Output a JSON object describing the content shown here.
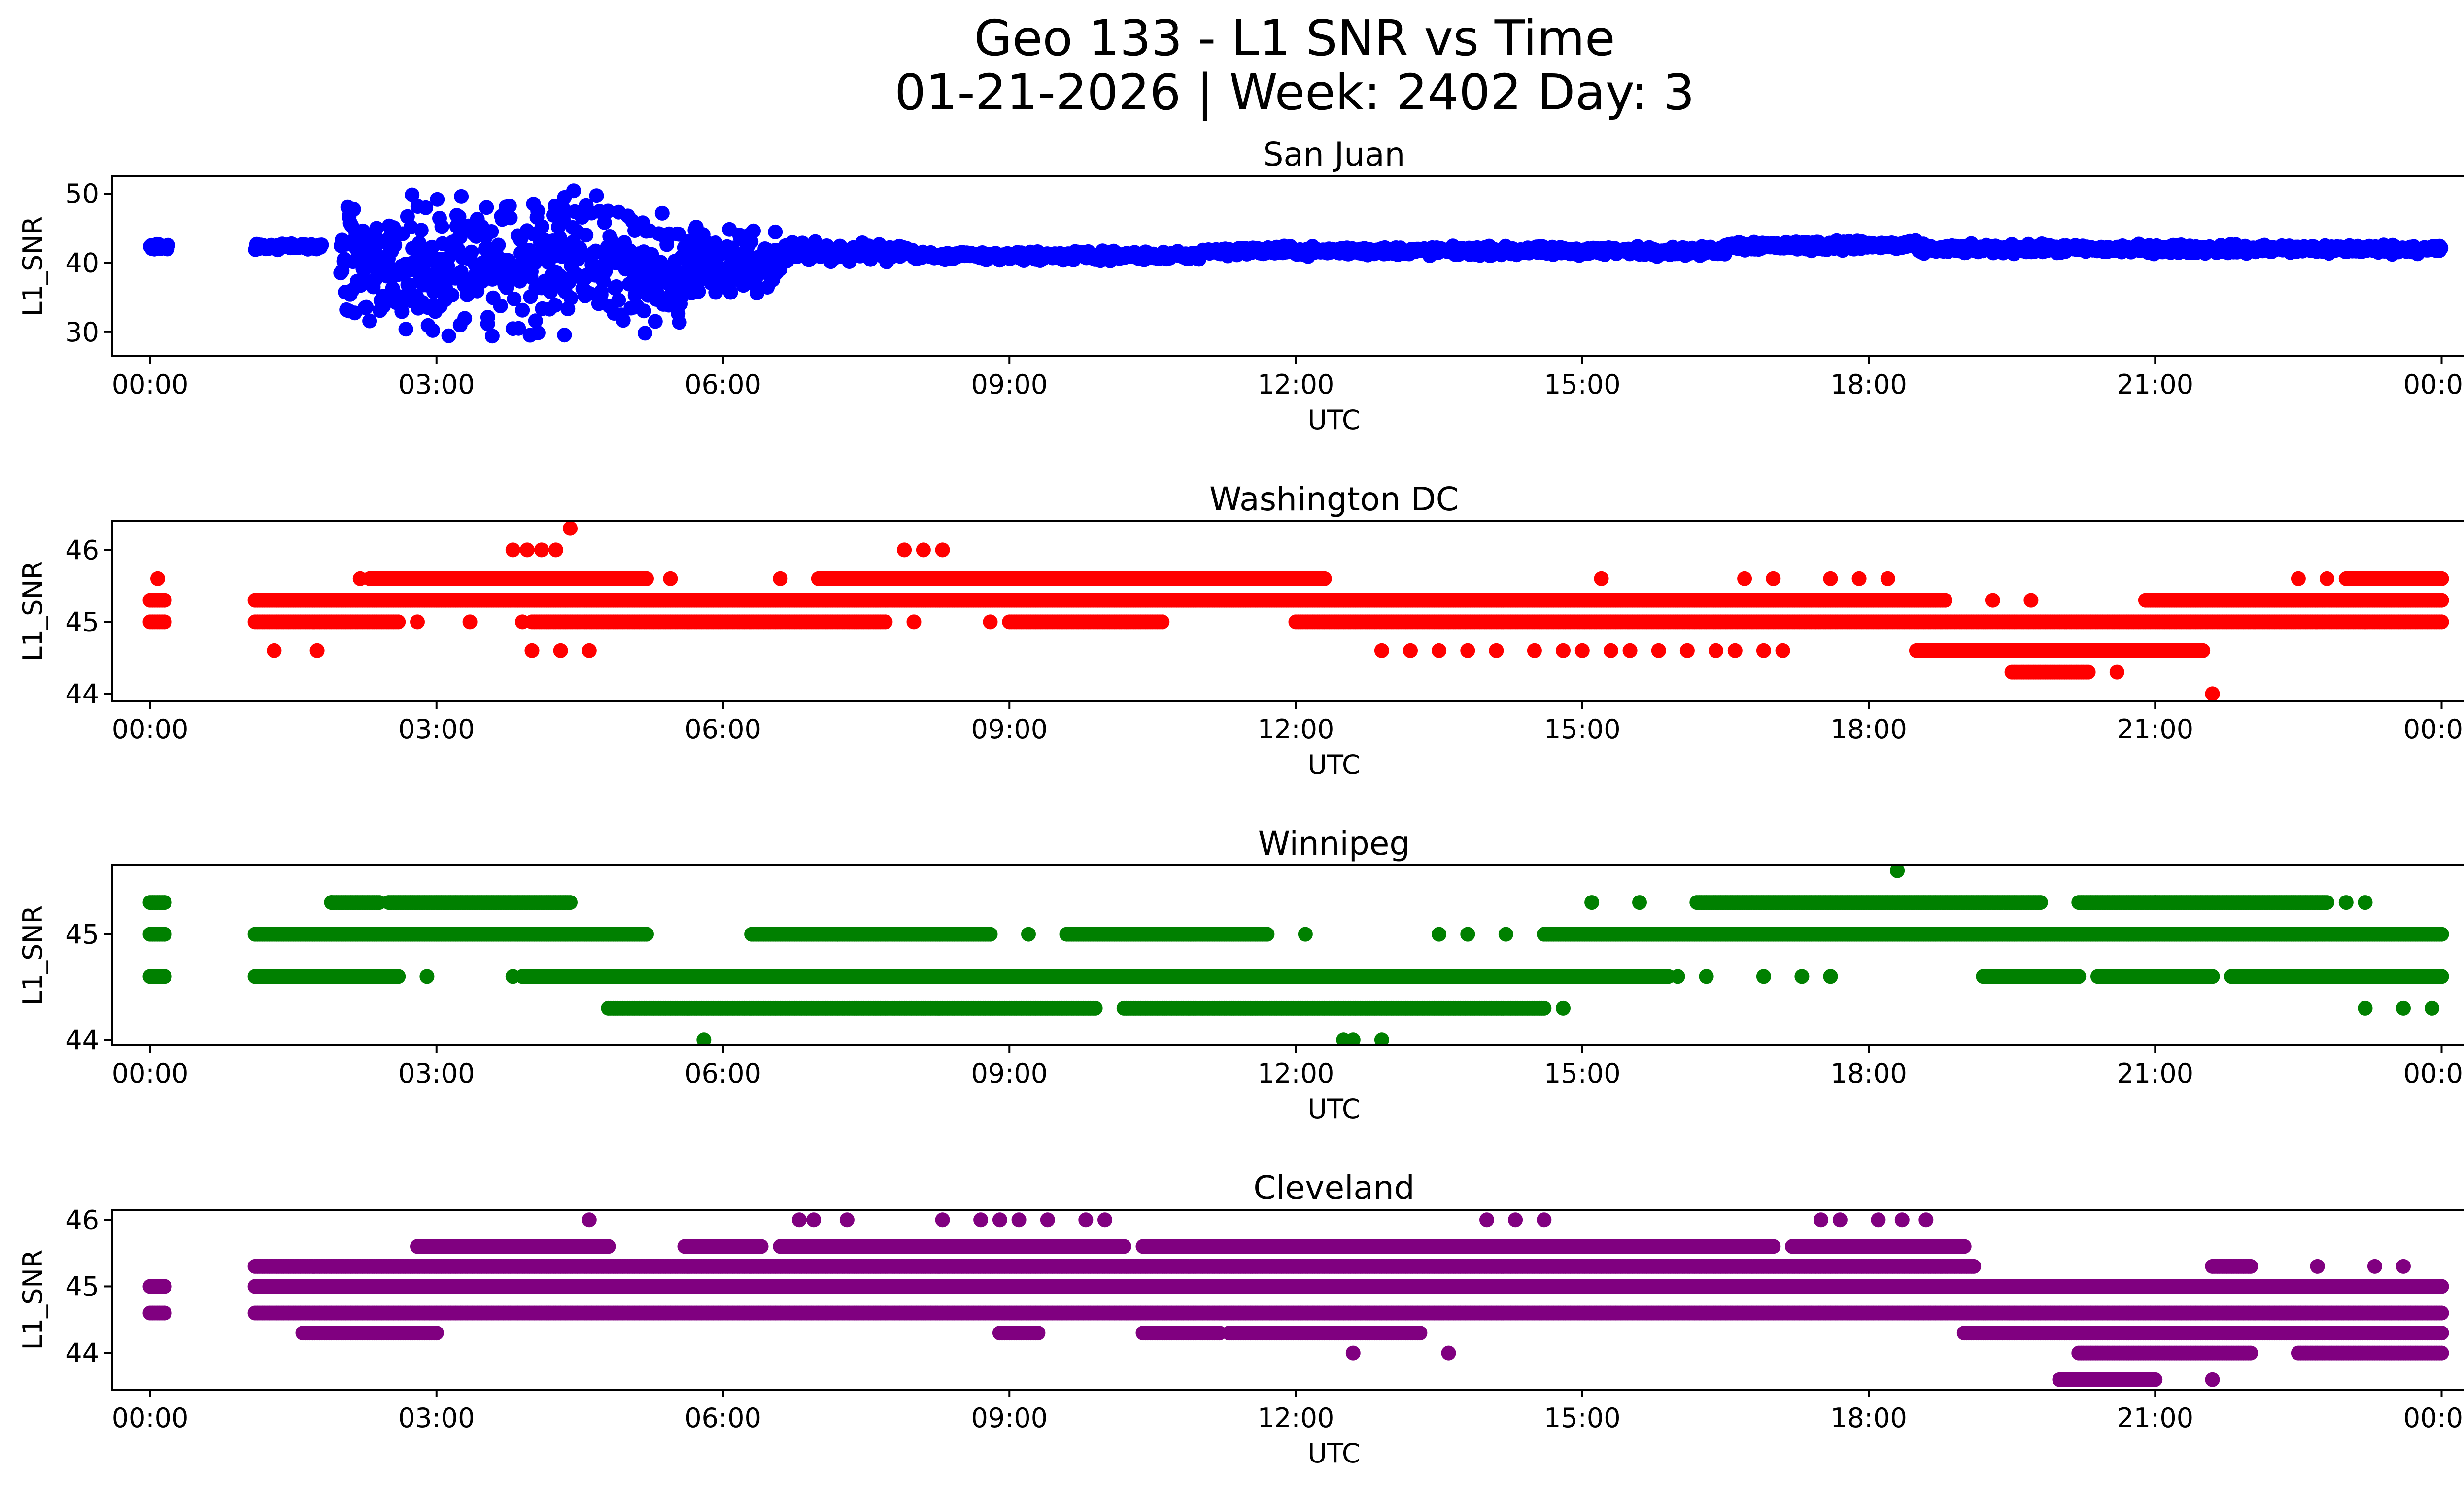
{
  "figure": {
    "title_line1": "Geo 133 - L1 SNR vs Time",
    "title_line2": "01-21-2026 | Week: 2402 Day: 3"
  },
  "chart_data": [
    {
      "type": "scatter",
      "title": "San Juan",
      "xlabel": "UTC",
      "ylabel": "L1_SNR",
      "color": "#0000ff",
      "xlim": [
        -0.4,
        25.2
      ],
      "ylim": [
        26.5,
        52.5
      ],
      "xticks": [
        0,
        3,
        6,
        9,
        12,
        15,
        18,
        21,
        24
      ],
      "xticklabels": [
        "00:00",
        "03:00",
        "06:00",
        "09:00",
        "12:00",
        "15:00",
        "18:00",
        "21:00",
        "00:00"
      ],
      "yticks": [
        30,
        40,
        50
      ],
      "yticklabels": [
        "30",
        "40",
        "50"
      ],
      "profile": [
        {
          "x_start": 0.0,
          "x_end": 0.2,
          "center": 42.3,
          "spread": 0.6
        },
        {
          "x_start": 1.1,
          "x_end": 1.8,
          "center": 42.3,
          "spread": 0.6
        },
        {
          "x_start": 2.0,
          "x_end": 2.6,
          "center": 40.0,
          "spread": 9.0
        },
        {
          "x_start": 2.6,
          "x_end": 4.8,
          "center": 39.5,
          "spread": 11.0
        },
        {
          "x_start": 4.8,
          "x_end": 5.6,
          "center": 38.5,
          "spread": 9.0
        },
        {
          "x_start": 5.6,
          "x_end": 6.6,
          "center": 40.5,
          "spread": 5.0
        },
        {
          "x_start": 6.6,
          "x_end": 8.0,
          "center": 41.5,
          "spread": 2.0
        },
        {
          "x_start": 8.0,
          "x_end": 11.0,
          "center": 41.0,
          "spread": 0.9
        },
        {
          "x_start": 11.0,
          "x_end": 16.5,
          "center": 41.7,
          "spread": 0.9
        },
        {
          "x_start": 16.5,
          "x_end": 18.5,
          "center": 42.5,
          "spread": 1.0
        },
        {
          "x_start": 18.5,
          "x_end": 24.0,
          "center": 42.0,
          "spread": 0.9
        }
      ]
    },
    {
      "type": "scatter",
      "title": "Washington DC",
      "xlabel": "UTC",
      "ylabel": "L1_SNR",
      "color": "#ff0000",
      "xlim": [
        -0.4,
        25.2
      ],
      "ylim": [
        43.9,
        46.4
      ],
      "xticks": [
        0,
        3,
        6,
        9,
        12,
        15,
        18,
        21,
        24
      ],
      "xticklabels": [
        "00:00",
        "03:00",
        "06:00",
        "09:00",
        "12:00",
        "15:00",
        "18:00",
        "21:00",
        "00:00"
      ],
      "yticks": [
        44,
        45,
        46
      ],
      "yticklabels": [
        "44",
        "45",
        "46"
      ],
      "bands": [
        {
          "y": 45.3,
          "segments": [
            [
              0.0,
              0.15
            ],
            [
              1.1,
              18.8
            ],
            [
              20.9,
              24.0
            ]
          ]
        },
        {
          "y": 45.0,
          "segments": [
            [
              0.0,
              0.15
            ],
            [
              1.1,
              2.6
            ],
            [
              4.0,
              7.7
            ],
            [
              9.0,
              10.6
            ],
            [
              12.0,
              24.0
            ]
          ]
        },
        {
          "y": 45.6,
          "segments": [
            [
              2.3,
              5.2
            ],
            [
              7.0,
              12.3
            ],
            [
              23.0,
              24.0
            ]
          ]
        },
        {
          "y": 44.6,
          "segments": [
            [
              18.5,
              21.5
            ]
          ]
        },
        {
          "y": 44.3,
          "segments": [
            [
              19.5,
              20.3
            ]
          ]
        }
      ],
      "points": [
        [
          0.08,
          45.6
        ],
        [
          1.3,
          44.6
        ],
        [
          1.75,
          44.6
        ],
        [
          2.2,
          45.6
        ],
        [
          2.8,
          45.0
        ],
        [
          3.35,
          45.0
        ],
        [
          3.9,
          45.0
        ],
        [
          3.8,
          46.0
        ],
        [
          3.95,
          46.0
        ],
        [
          4.1,
          46.0
        ],
        [
          4.25,
          46.0
        ],
        [
          4.4,
          46.3
        ],
        [
          4.0,
          44.6
        ],
        [
          4.3,
          44.6
        ],
        [
          4.6,
          44.6
        ],
        [
          5.45,
          45.6
        ],
        [
          6.6,
          45.6
        ],
        [
          7.2,
          45.6
        ],
        [
          7.9,
          46.0
        ],
        [
          8.1,
          46.0
        ],
        [
          8.3,
          46.0
        ],
        [
          8.0,
          45.0
        ],
        [
          8.8,
          45.0
        ],
        [
          12.9,
          44.6
        ],
        [
          13.2,
          44.6
        ],
        [
          13.5,
          44.6
        ],
        [
          13.8,
          44.6
        ],
        [
          14.1,
          44.6
        ],
        [
          14.5,
          44.6
        ],
        [
          14.8,
          44.6
        ],
        [
          15.0,
          44.6
        ],
        [
          15.3,
          44.6
        ],
        [
          15.5,
          44.6
        ],
        [
          15.8,
          44.6
        ],
        [
          16.1,
          44.6
        ],
        [
          16.4,
          44.6
        ],
        [
          16.6,
          44.6
        ],
        [
          16.9,
          44.6
        ],
        [
          17.1,
          44.6
        ],
        [
          15.2,
          45.6
        ],
        [
          16.7,
          45.6
        ],
        [
          17.0,
          45.6
        ],
        [
          17.6,
          45.6
        ],
        [
          17.9,
          45.6
        ],
        [
          18.2,
          45.6
        ],
        [
          19.3,
          45.3
        ],
        [
          19.7,
          45.3
        ],
        [
          20.6,
          44.3
        ],
        [
          21.6,
          44.0
        ],
        [
          22.5,
          45.6
        ],
        [
          22.8,
          45.6
        ],
        [
          23.2,
          45.0
        ]
      ]
    },
    {
      "type": "scatter",
      "title": "Winnipeg",
      "xlabel": "UTC",
      "ylabel": "L1_SNR",
      "color": "#008000",
      "xlim": [
        -0.4,
        25.2
      ],
      "ylim": [
        43.95,
        45.65
      ],
      "xticks": [
        0,
        3,
        6,
        9,
        12,
        15,
        18,
        21,
        24
      ],
      "xticklabels": [
        "00:00",
        "03:00",
        "06:00",
        "09:00",
        "12:00",
        "15:00",
        "18:00",
        "21:00",
        "00:00"
      ],
      "yticks": [
        44,
        45
      ],
      "yticklabels": [
        "44",
        "45"
      ],
      "bands": [
        {
          "y": 45.3,
          "segments": [
            [
              0.0,
              0.15
            ],
            [
              1.9,
              2.4
            ],
            [
              2.5,
              4.4
            ],
            [
              16.2,
              19.8
            ],
            [
              20.2,
              22.8
            ]
          ]
        },
        {
          "y": 45.0,
          "segments": [
            [
              0.0,
              0.15
            ],
            [
              1.1,
              5.2
            ],
            [
              6.3,
              8.8
            ],
            [
              9.6,
              10.9
            ],
            [
              10.9,
              11.7
            ],
            [
              14.6,
              24.0
            ]
          ]
        },
        {
          "y": 44.6,
          "segments": [
            [
              0.0,
              0.15
            ],
            [
              1.1,
              2.6
            ],
            [
              3.9,
              15.9
            ],
            [
              19.2,
              20.2
            ],
            [
              20.4,
              21.6
            ],
            [
              21.8,
              24.0
            ]
          ]
        },
        {
          "y": 44.3,
          "segments": [
            [
              4.8,
              9.9
            ],
            [
              10.2,
              14.6
            ]
          ]
        }
      ],
      "points": [
        [
          1.9,
          45.3
        ],
        [
          2.9,
          44.6
        ],
        [
          3.8,
          44.6
        ],
        [
          5.8,
          44.0
        ],
        [
          7.2,
          45.0
        ],
        [
          9.2,
          45.0
        ],
        [
          12.1,
          45.0
        ],
        [
          13.5,
          45.0
        ],
        [
          13.8,
          45.0
        ],
        [
          14.2,
          45.0
        ],
        [
          15.1,
          45.3
        ],
        [
          15.6,
          45.3
        ],
        [
          16.0,
          44.6
        ],
        [
          16.3,
          44.6
        ],
        [
          16.9,
          44.6
        ],
        [
          17.3,
          44.6
        ],
        [
          17.6,
          44.6
        ],
        [
          18.3,
          45.6
        ],
        [
          14.8,
          44.3
        ],
        [
          12.5,
          44.0
        ],
        [
          12.6,
          44.0
        ],
        [
          12.9,
          44.0
        ],
        [
          23.2,
          45.3
        ],
        [
          23.0,
          45.3
        ],
        [
          23.2,
          44.3
        ],
        [
          23.6,
          44.3
        ],
        [
          23.9,
          44.3
        ],
        [
          21.0,
          45.3
        ]
      ]
    },
    {
      "type": "scatter",
      "title": "Cleveland",
      "xlabel": "UTC",
      "ylabel": "L1_SNR",
      "color": "#800080",
      "xlim": [
        -0.4,
        25.2
      ],
      "ylim": [
        43.45,
        46.15
      ],
      "xticks": [
        0,
        3,
        6,
        9,
        12,
        15,
        18,
        21,
        24
      ],
      "xticklabels": [
        "00:00",
        "03:00",
        "06:00",
        "09:00",
        "12:00",
        "15:00",
        "18:00",
        "21:00",
        "00:00"
      ],
      "yticks": [
        44,
        45,
        46
      ],
      "yticklabels": [
        "44",
        "45",
        "46"
      ],
      "bands": [
        {
          "y": 45.0,
          "segments": [
            [
              0.0,
              0.15
            ],
            [
              1.1,
              24.0
            ]
          ]
        },
        {
          "y": 44.6,
          "segments": [
            [
              0.0,
              0.15
            ],
            [
              1.1,
              24.0
            ]
          ]
        },
        {
          "y": 45.3,
          "segments": [
            [
              1.1,
              19.1
            ],
            [
              21.6,
              22.0
            ]
          ]
        },
        {
          "y": 45.6,
          "segments": [
            [
              2.8,
              4.8
            ],
            [
              5.6,
              6.4
            ],
            [
              6.6,
              10.2
            ],
            [
              10.4,
              17.0
            ],
            [
              17.2,
              19.0
            ]
          ]
        },
        {
          "y": 44.3,
          "segments": [
            [
              1.6,
              3.0
            ],
            [
              8.9,
              9.3
            ],
            [
              10.4,
              11.2
            ],
            [
              11.3,
              13.3
            ],
            [
              19.0,
              24.0
            ]
          ]
        },
        {
          "y": 44.0,
          "segments": [
            [
              20.2,
              22.0
            ],
            [
              22.5,
              24.0
            ]
          ]
        },
        {
          "y": 43.6,
          "segments": [
            [
              20.0,
              21.0
            ]
          ]
        }
      ],
      "points": [
        [
          4.6,
          46.0
        ],
        [
          6.8,
          46.0
        ],
        [
          6.95,
          46.0
        ],
        [
          7.3,
          46.0
        ],
        [
          8.3,
          46.0
        ],
        [
          8.7,
          46.0
        ],
        [
          8.9,
          46.0
        ],
        [
          9.1,
          46.0
        ],
        [
          9.4,
          46.0
        ],
        [
          9.8,
          46.0
        ],
        [
          10.0,
          46.0
        ],
        [
          14.0,
          46.0
        ],
        [
          14.3,
          46.0
        ],
        [
          14.6,
          46.0
        ],
        [
          17.5,
          46.0
        ],
        [
          17.7,
          46.0
        ],
        [
          18.1,
          46.0
        ],
        [
          18.35,
          46.0
        ],
        [
          18.6,
          46.0
        ],
        [
          12.6,
          44.0
        ],
        [
          13.6,
          44.0
        ],
        [
          21.6,
          43.6
        ],
        [
          20.8,
          45.0
        ],
        [
          23.3,
          45.3
        ],
        [
          23.6,
          45.3
        ],
        [
          22.7,
          45.3
        ]
      ]
    }
  ]
}
